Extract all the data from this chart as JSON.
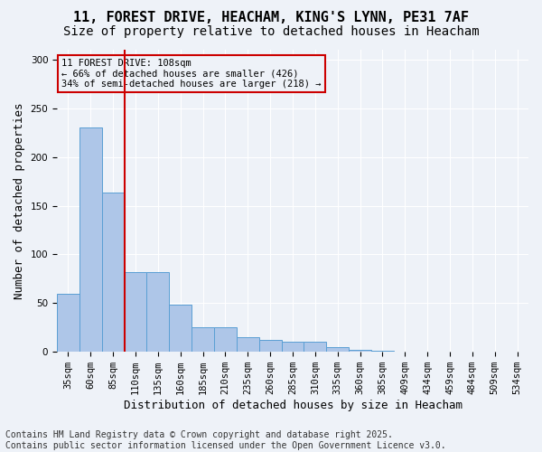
{
  "title_line1": "11, FOREST DRIVE, HEACHAM, KING'S LYNN, PE31 7AF",
  "title_line2": "Size of property relative to detached houses in Heacham",
  "xlabel": "Distribution of detached houses by size in Heacham",
  "ylabel": "Number of detached properties",
  "bins": [
    "35sqm",
    "60sqm",
    "85sqm",
    "110sqm",
    "135sqm",
    "160sqm",
    "185sqm",
    "210sqm",
    "235sqm",
    "260sqm",
    "285sqm",
    "310sqm",
    "335sqm",
    "360sqm",
    "385sqm",
    "409sqm",
    "434sqm",
    "459sqm",
    "484sqm",
    "509sqm",
    "534sqm"
  ],
  "values": [
    60,
    230,
    163,
    82,
    82,
    48,
    25,
    25,
    15,
    12,
    10,
    10,
    5,
    2,
    1,
    0,
    0,
    0,
    0,
    0,
    0
  ],
  "bar_color": "#aec6e8",
  "bar_edge_color": "#5a9fd4",
  "vline_color": "#cc0000",
  "vline_pos": 2.5,
  "annotation_text": "11 FOREST DRIVE: 108sqm\n← 66% of detached houses are smaller (426)\n34% of semi-detached houses are larger (218) →",
  "annotation_box_color": "#cc0000",
  "background_color": "#eef2f8",
  "grid_color": "#ffffff",
  "ylim": [
    0,
    310
  ],
  "yticks": [
    0,
    50,
    100,
    150,
    200,
    250,
    300
  ],
  "footer_line1": "Contains HM Land Registry data © Crown copyright and database right 2025.",
  "footer_line2": "Contains public sector information licensed under the Open Government Licence v3.0.",
  "title_fontsize": 11,
  "subtitle_fontsize": 10,
  "tick_fontsize": 7.5,
  "xlabel_fontsize": 9,
  "ylabel_fontsize": 9,
  "footer_fontsize": 7
}
